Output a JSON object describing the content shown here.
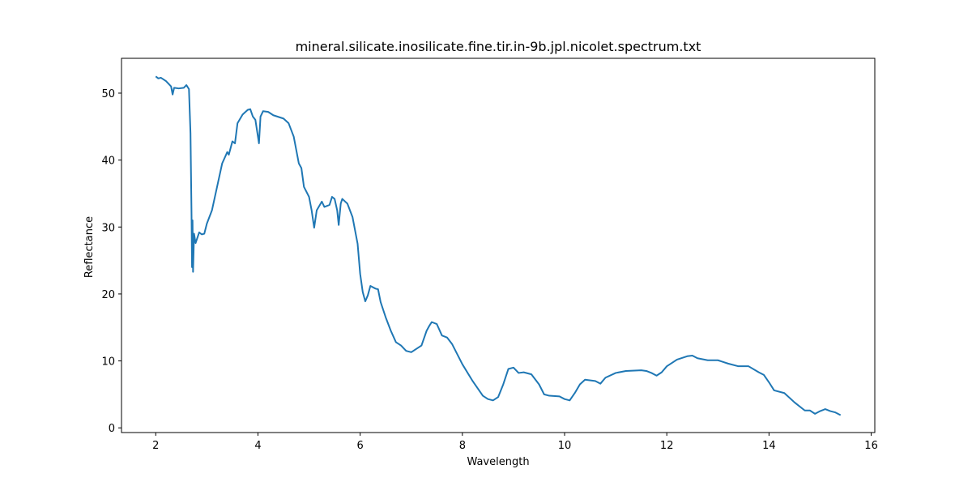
{
  "chart_data": {
    "type": "line",
    "title": "mineral.silicate.inosilicate.fine.tir.in-9b.jpl.nicolet.spectrum.txt",
    "x_label": "Wavelength",
    "y_label": "Reflectance",
    "xlim": [
      1.33,
      16.07
    ],
    "ylim": [
      -0.7,
      55.2
    ],
    "xticks": [
      2,
      4,
      6,
      8,
      10,
      12,
      14,
      16
    ],
    "yticks": [
      0,
      10,
      20,
      30,
      40,
      50
    ],
    "grid": false,
    "x": [
      2.0,
      2.05,
      2.1,
      2.2,
      2.3,
      2.33,
      2.36,
      2.45,
      2.55,
      2.6,
      2.65,
      2.68,
      2.7,
      2.71,
      2.72,
      2.73,
      2.75,
      2.78,
      2.85,
      2.9,
      2.95,
      3.0,
      3.1,
      3.2,
      3.3,
      3.4,
      3.43,
      3.5,
      3.55,
      3.6,
      3.7,
      3.8,
      3.85,
      3.9,
      3.95,
      4.0,
      4.02,
      4.05,
      4.1,
      4.2,
      4.3,
      4.5,
      4.6,
      4.7,
      4.8,
      4.85,
      4.9,
      5.0,
      5.05,
      5.1,
      5.15,
      5.25,
      5.3,
      5.4,
      5.45,
      5.5,
      5.55,
      5.58,
      5.62,
      5.65,
      5.75,
      5.85,
      5.95,
      6.0,
      6.05,
      6.1,
      6.15,
      6.2,
      6.3,
      6.35,
      6.4,
      6.5,
      6.6,
      6.7,
      6.8,
      6.9,
      7.0,
      7.1,
      7.2,
      7.3,
      7.35,
      7.4,
      7.5,
      7.6,
      7.7,
      7.8,
      8.0,
      8.2,
      8.4,
      8.5,
      8.6,
      8.7,
      8.8,
      8.9,
      9.0,
      9.1,
      9.2,
      9.35,
      9.5,
      9.6,
      9.7,
      9.9,
      10.0,
      10.1,
      10.2,
      10.3,
      10.4,
      10.6,
      10.7,
      10.8,
      11.0,
      11.2,
      11.5,
      11.6,
      11.7,
      11.8,
      11.9,
      12.0,
      12.2,
      12.4,
      12.5,
      12.6,
      12.8,
      13.0,
      13.2,
      13.4,
      13.6,
      13.8,
      13.9,
      14.0,
      14.1,
      14.3,
      14.5,
      14.7,
      14.8,
      14.9,
      15.0,
      15.1,
      15.2,
      15.3,
      15.4
    ],
    "series": [
      {
        "color": "#1f77b4",
        "values": [
          52.5,
          52.2,
          52.3,
          51.8,
          51.0,
          49.8,
          50.8,
          50.7,
          50.8,
          51.2,
          50.6,
          44,
          32,
          24,
          31,
          23.3,
          29,
          27.6,
          29.2,
          28.9,
          29,
          30.5,
          32.5,
          36,
          39.5,
          41.2,
          40.8,
          42.8,
          42.5,
          45.5,
          46.8,
          47.5,
          47.6,
          46.5,
          46,
          43.5,
          42.5,
          46.5,
          47.3,
          47.2,
          46.7,
          46.2,
          45.5,
          43.5,
          39.5,
          38.8,
          36,
          34.5,
          32.5,
          29.9,
          32.5,
          33.8,
          33,
          33.3,
          34.5,
          34.2,
          32.5,
          30.3,
          33.5,
          34.2,
          33.5,
          31.5,
          27.5,
          23,
          20.3,
          18.9,
          19.8,
          21.2,
          20.8,
          20.7,
          18.8,
          16.5,
          14.5,
          12.8,
          12.3,
          11.5,
          11.3,
          11.8,
          12.3,
          14.5,
          15.2,
          15.8,
          15.5,
          13.8,
          13.5,
          12.5,
          9.5,
          7,
          4.8,
          4.3,
          4.1,
          4.6,
          6.5,
          8.8,
          9.0,
          8.2,
          8.3,
          8.0,
          6.5,
          5.0,
          4.8,
          4.7,
          4.3,
          4.1,
          5.2,
          6.5,
          7.2,
          7.0,
          6.6,
          7.5,
          8.2,
          8.5,
          8.6,
          8.5,
          8.2,
          7.8,
          8.3,
          9.2,
          10.2,
          10.7,
          10.8,
          10.4,
          10.1,
          10.1,
          9.6,
          9.2,
          9.2,
          8.3,
          7.9,
          6.8,
          5.6,
          5.2,
          3.8,
          2.6,
          2.6,
          2.1,
          2.5,
          2.8,
          2.5,
          2.3,
          1.9
        ]
      }
    ]
  }
}
